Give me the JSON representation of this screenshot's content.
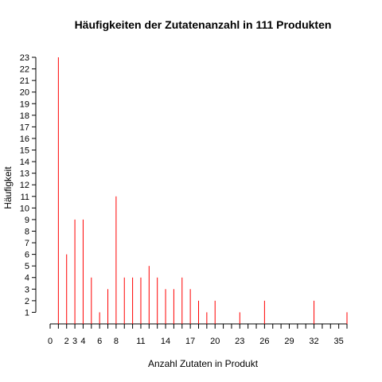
{
  "chart_data": {
    "type": "bar",
    "title": "Häufigkeiten der Zutatenanzahl in 111 Produkten",
    "xlabel": "Anzahl Zutaten in Produkt",
    "ylabel": "Häufigkeit",
    "xlim": [
      0,
      36
    ],
    "ylim": [
      0,
      23
    ],
    "x_ticks": [
      0,
      2,
      3,
      4,
      6,
      8,
      11,
      14,
      17,
      20,
      23,
      26,
      29,
      32,
      35
    ],
    "y_ticks": [
      1,
      2,
      3,
      4,
      5,
      6,
      7,
      8,
      9,
      10,
      11,
      12,
      13,
      14,
      15,
      16,
      17,
      18,
      19,
      20,
      21,
      22,
      23
    ],
    "x_minor_ticks": [
      0,
      1,
      2,
      3,
      4,
      5,
      6,
      7,
      8,
      9,
      10,
      11,
      12,
      13,
      14,
      15,
      16,
      17,
      18,
      19,
      20,
      21,
      22,
      23,
      24,
      25,
      26,
      27,
      28,
      29,
      30,
      31,
      32,
      33,
      34,
      35,
      36
    ],
    "bar_color": "#ff0000",
    "x": [
      1,
      2,
      3,
      4,
      5,
      6,
      7,
      8,
      9,
      10,
      11,
      12,
      13,
      14,
      15,
      16,
      17,
      18,
      19,
      20,
      23,
      26,
      32,
      36
    ],
    "values": [
      23,
      6,
      9,
      9,
      4,
      1,
      3,
      11,
      4,
      4,
      4,
      5,
      4,
      3,
      3,
      4,
      3,
      2,
      1,
      2,
      1,
      2,
      2,
      1
    ],
    "grid": false
  }
}
